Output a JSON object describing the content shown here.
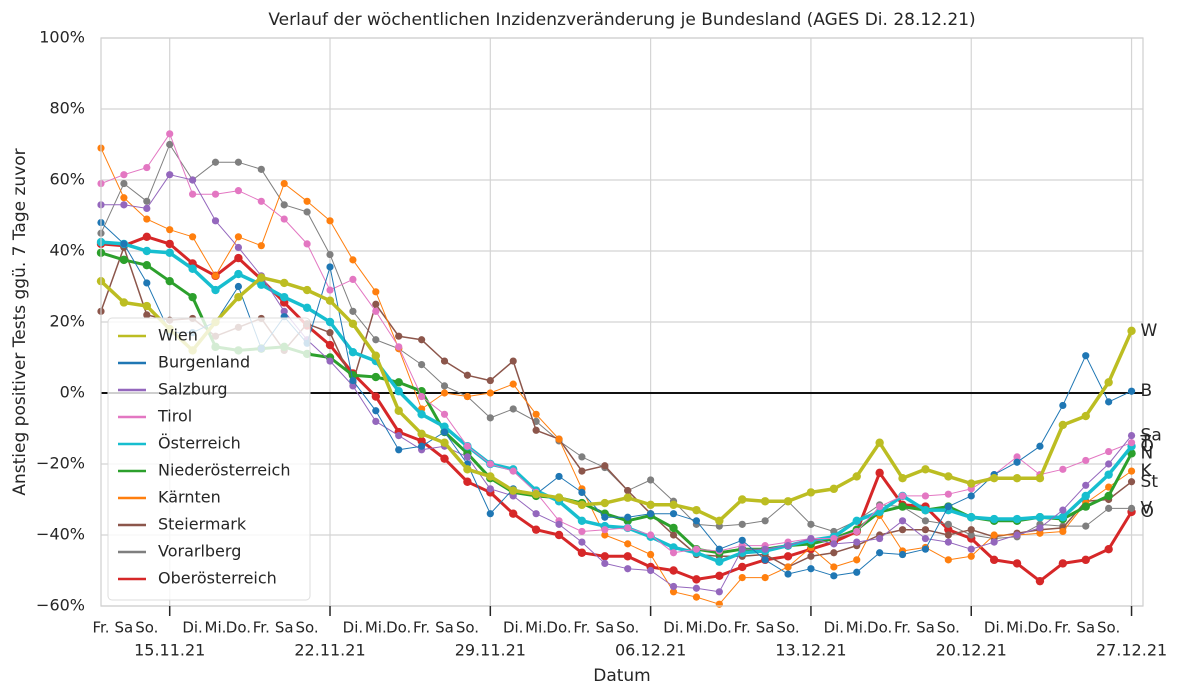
{
  "chart_data": {
    "type": "line",
    "title": "Verlauf der wöchentlichen Inzidenzveränderung je Bundesland (AGES Di. 28.12.21)",
    "xlabel": "Datum",
    "ylabel": "Anstieg positiver Tests ggü. 7 Tage zuvor",
    "x": [
      "2021-11-12",
      "2021-11-13",
      "2021-11-14",
      "2021-11-15",
      "2021-11-16",
      "2021-11-17",
      "2021-11-18",
      "2021-11-19",
      "2021-11-20",
      "2021-11-21",
      "2021-11-22",
      "2021-11-23",
      "2021-11-24",
      "2021-11-25",
      "2021-11-26",
      "2021-11-27",
      "2021-11-28",
      "2021-11-29",
      "2021-11-30",
      "2021-12-01",
      "2021-12-02",
      "2021-12-03",
      "2021-12-04",
      "2021-12-05",
      "2021-12-06",
      "2021-12-07",
      "2021-12-08",
      "2021-12-09",
      "2021-12-10",
      "2021-12-11",
      "2021-12-12",
      "2021-12-13",
      "2021-12-14",
      "2021-12-15",
      "2021-12-16",
      "2021-12-17",
      "2021-12-18",
      "2021-12-19",
      "2021-12-20",
      "2021-12-21",
      "2021-12-22",
      "2021-12-23",
      "2021-12-24",
      "2021-12-25",
      "2021-12-26",
      "2021-12-27"
    ],
    "xlim": [
      "2021-11-12T00:00Z",
      "2021-12-27T12:00Z"
    ],
    "xticks": [
      {
        "value": "2021-11-15",
        "label": "15.11.21"
      },
      {
        "value": "2021-11-22",
        "label": "22.11.21"
      },
      {
        "value": "2021-11-29",
        "label": "29.11.21"
      },
      {
        "value": "2021-12-06",
        "label": "06.12.21"
      },
      {
        "value": "2021-12-13",
        "label": "13.12.21"
      },
      {
        "value": "2021-12-20",
        "label": "20.12.21"
      },
      {
        "value": "2021-12-27",
        "label": "27.12.21"
      }
    ],
    "xticks_minor": [
      {
        "value": "2021-11-12",
        "label": "Fr."
      },
      {
        "value": "2021-11-13",
        "label": "Sa"
      },
      {
        "value": "2021-11-14",
        "label": "So."
      },
      {
        "value": "2021-11-16",
        "label": "Di."
      },
      {
        "value": "2021-11-17",
        "label": "Mi."
      },
      {
        "value": "2021-11-18",
        "label": "Do."
      },
      {
        "value": "2021-11-19",
        "label": "Fr."
      },
      {
        "value": "2021-11-20",
        "label": "Sa"
      },
      {
        "value": "2021-11-21",
        "label": "So."
      },
      {
        "value": "2021-11-23",
        "label": "Di."
      },
      {
        "value": "2021-11-24",
        "label": "Mi."
      },
      {
        "value": "2021-11-25",
        "label": "Do."
      },
      {
        "value": "2021-11-26",
        "label": "Fr."
      },
      {
        "value": "2021-11-27",
        "label": "Sa"
      },
      {
        "value": "2021-11-28",
        "label": "So."
      },
      {
        "value": "2021-11-30",
        "label": "Di."
      },
      {
        "value": "2021-12-01",
        "label": "Mi."
      },
      {
        "value": "2021-12-02",
        "label": "Do."
      },
      {
        "value": "2021-12-03",
        "label": "Fr."
      },
      {
        "value": "2021-12-04",
        "label": "Sa"
      },
      {
        "value": "2021-12-05",
        "label": "So."
      },
      {
        "value": "2021-12-07",
        "label": "Di."
      },
      {
        "value": "2021-12-08",
        "label": "Mi."
      },
      {
        "value": "2021-12-09",
        "label": "Do."
      },
      {
        "value": "2021-12-10",
        "label": "Fr."
      },
      {
        "value": "2021-12-11",
        "label": "Sa"
      },
      {
        "value": "2021-12-12",
        "label": "So."
      },
      {
        "value": "2021-12-14",
        "label": "Di."
      },
      {
        "value": "2021-12-15",
        "label": "Mi."
      },
      {
        "value": "2021-12-16",
        "label": "Do."
      },
      {
        "value": "2021-12-17",
        "label": "Fr."
      },
      {
        "value": "2021-12-18",
        "label": "Sa"
      },
      {
        "value": "2021-12-19",
        "label": "So."
      },
      {
        "value": "2021-12-21",
        "label": "Di."
      },
      {
        "value": "2021-12-22",
        "label": "Mi."
      },
      {
        "value": "2021-12-23",
        "label": "Do."
      },
      {
        "value": "2021-12-24",
        "label": "Fr."
      },
      {
        "value": "2021-12-25",
        "label": "Sa"
      },
      {
        "value": "2021-12-26",
        "label": "So."
      }
    ],
    "ylim": [
      -60,
      100
    ],
    "yticks": [
      {
        "value": -60,
        "label": "−60%"
      },
      {
        "value": -40,
        "label": "−40%"
      },
      {
        "value": -20,
        "label": "−20%"
      },
      {
        "value": 0,
        "label": "0%"
      },
      {
        "value": 20,
        "label": "20%"
      },
      {
        "value": 40,
        "label": "40%"
      },
      {
        "value": 60,
        "label": "60%"
      },
      {
        "value": 80,
        "label": "80%"
      },
      {
        "value": 100,
        "label": "100%"
      }
    ],
    "grid": true,
    "hline": 0,
    "legend": "lower left",
    "series": [
      {
        "name": "Wien",
        "end_label": "W",
        "color": "#bcbd22",
        "linewidth": 3.5,
        "values": [
          31.5,
          25.5,
          24.5,
          18,
          12,
          20,
          27,
          32.5,
          31,
          29,
          26,
          19.5,
          10.5,
          -5,
          -11.5,
          -14,
          -21.5,
          -23.5,
          -27.5,
          -28.5,
          -29.5,
          -31.5,
          -31,
          -29.5,
          -31.5,
          -31.5,
          -33,
          -36,
          -30,
          -30.5,
          -30.5,
          -28,
          -27,
          -23.5,
          -14,
          -24,
          -21.5,
          -23.5,
          -25.5,
          -24,
          -24,
          -24,
          -9,
          -6.5,
          3,
          17.5
        ]
      },
      {
        "name": "Burgenland",
        "end_label": "B",
        "color": "#1f77b4",
        "linewidth": 1,
        "values": [
          48,
          42,
          31,
          17,
          17,
          20,
          30,
          12.5,
          21.5,
          14,
          35.5,
          3.5,
          -5,
          -16,
          -15,
          -11,
          -20,
          -34,
          -27,
          -28.5,
          -23.5,
          -28,
          -35,
          -35,
          -34,
          -34,
          -36,
          -44,
          -41.5,
          -47,
          -51,
          -49.5,
          -51.5,
          -50.5,
          -45,
          -45.5,
          -44,
          -32,
          -29,
          -23,
          -19.5,
          -15,
          -3.5,
          10.5,
          -2.5,
          0.5
        ]
      },
      {
        "name": "Salzburg",
        "end_label": "Sa",
        "color": "#9467bd",
        "linewidth": 1,
        "values": [
          53,
          53,
          52,
          61.5,
          60,
          48.5,
          41,
          33,
          23,
          15,
          9,
          2,
          -8,
          -12,
          -16,
          -15,
          -18,
          -27,
          -29,
          -34,
          -37,
          -42,
          -48,
          -49.5,
          -50,
          -54.5,
          -55,
          -56,
          -44,
          -44,
          -43,
          -41,
          -42.5,
          -42,
          -41,
          -36,
          -41,
          -42,
          -44,
          -42,
          -40,
          -38,
          -33,
          -26,
          -20,
          -12
        ]
      },
      {
        "name": "Tirol",
        "end_label": "T",
        "color": "#e377c2",
        "linewidth": 1,
        "values": [
          59,
          61.5,
          63.5,
          73,
          56,
          56,
          57,
          54,
          49,
          42,
          29,
          32,
          23,
          13,
          -1,
          -6,
          -15,
          -20,
          -22,
          -28,
          -36,
          -39,
          -38.5,
          -38,
          -40,
          -45,
          -44,
          -44.5,
          -43,
          -43,
          -42,
          -41,
          -41,
          -39,
          -32,
          -29,
          -29,
          -28.5,
          -27,
          -23,
          -18,
          -23,
          -21.5,
          -19,
          -16.5,
          -14
        ]
      },
      {
        "name": "Österreich",
        "end_label": "Ö",
        "color": "#17becf",
        "linewidth": 3.5,
        "values": [
          42.5,
          42,
          40,
          39.5,
          35,
          29,
          33.5,
          30.5,
          27,
          24,
          20,
          11.5,
          9,
          0.5,
          -6,
          -9.5,
          -15,
          -20,
          -21.5,
          -27.5,
          -30.5,
          -36,
          -37.5,
          -38,
          -40.5,
          -43.5,
          -45,
          -47.5,
          -45,
          -44.5,
          -43,
          -41.5,
          -40.5,
          -36,
          -33.5,
          -29,
          -33,
          -33,
          -35,
          -35.5,
          -35.5,
          -35,
          -35,
          -29,
          -23,
          -15
        ]
      },
      {
        "name": "Niederösterreich",
        "end_label": "N",
        "color": "#2ca02c",
        "linewidth": 3,
        "values": [
          39.5,
          37.5,
          36,
          31.5,
          27,
          13,
          12,
          12.5,
          13,
          11,
          10,
          5,
          4.5,
          3,
          0.5,
          -11,
          -17,
          -24,
          -28,
          -29,
          -29.5,
          -31,
          -34,
          -36,
          -34.5,
          -38,
          -44,
          -45,
          -44,
          -44,
          -43,
          -42.5,
          -41,
          -38.5,
          -33.5,
          -32,
          -33,
          -32,
          -35,
          -36,
          -36,
          -35,
          -35.5,
          -32,
          -29,
          -17
        ]
      },
      {
        "name": "Kärnten",
        "end_label": "K",
        "color": "#ff7f0e",
        "linewidth": 1,
        "values": [
          69,
          55,
          49,
          46,
          44,
          33,
          44,
          41.5,
          59,
          54,
          48.5,
          37.5,
          28.5,
          12.5,
          -4.5,
          0,
          -1,
          0,
          2.5,
          -6,
          -13,
          -27,
          -40,
          -42.5,
          -45.5,
          -56,
          -57.5,
          -59.5,
          -52,
          -52,
          -49,
          -43.5,
          -49,
          -47,
          -34.5,
          -44.5,
          -43.5,
          -47,
          -46,
          -40,
          -40,
          -39.5,
          -39,
          -31,
          -26.5,
          -22
        ]
      },
      {
        "name": "Steiermark",
        "end_label": "St",
        "color": "#8c564b",
        "linewidth": 1.5,
        "values": [
          23,
          41,
          22,
          20.5,
          21,
          16,
          18.5,
          21,
          12,
          19.5,
          17,
          3,
          25,
          16,
          15,
          9,
          5,
          3.5,
          9,
          -10.5,
          -13,
          -22,
          -20.5,
          -27.5,
          -34,
          -40,
          -45.5,
          -46,
          -46,
          -45.5,
          -49,
          -46,
          -45,
          -43,
          -40,
          -38.5,
          -38.5,
          -40,
          -38.5,
          -40.5,
          -39.5,
          -38.5,
          -38,
          -30.5,
          -30,
          -25
        ]
      },
      {
        "name": "Vorarlberg",
        "end_label": "V",
        "color": "#7f7f7f",
        "linewidth": 1,
        "values": [
          45,
          59,
          54,
          70,
          60,
          65,
          65,
          63,
          53,
          51,
          39,
          23,
          15,
          12.5,
          8,
          2,
          -1,
          -7,
          -4.5,
          -8,
          -13.5,
          -18,
          -21,
          -27.5,
          -24.5,
          -30.5,
          -37,
          -37.5,
          -37,
          -36,
          -30.5,
          -37,
          -39,
          -36,
          -31.5,
          -32,
          -36,
          -37,
          -40,
          -41,
          -40.5,
          -37,
          -37.5,
          -37.5,
          -32.5,
          -32.5
        ]
      },
      {
        "name": "Oberösterreich",
        "end_label": "O",
        "color": "#d62728",
        "linewidth": 3,
        "values": [
          42,
          41.5,
          44,
          42,
          36.5,
          33,
          38,
          32,
          25.5,
          19,
          13.5,
          5.5,
          -1,
          -11,
          -13.5,
          -18.5,
          -25,
          -28,
          -34,
          -38.5,
          -40,
          -45,
          -46,
          -46,
          -49,
          -50,
          -52.5,
          -51.5,
          -49,
          -47,
          -46,
          -44,
          -42,
          -39,
          -22.5,
          -31.5,
          -32,
          -38.5,
          -41,
          -47,
          -48,
          -53,
          -48,
          -47,
          -44,
          -33.5
        ]
      }
    ]
  }
}
